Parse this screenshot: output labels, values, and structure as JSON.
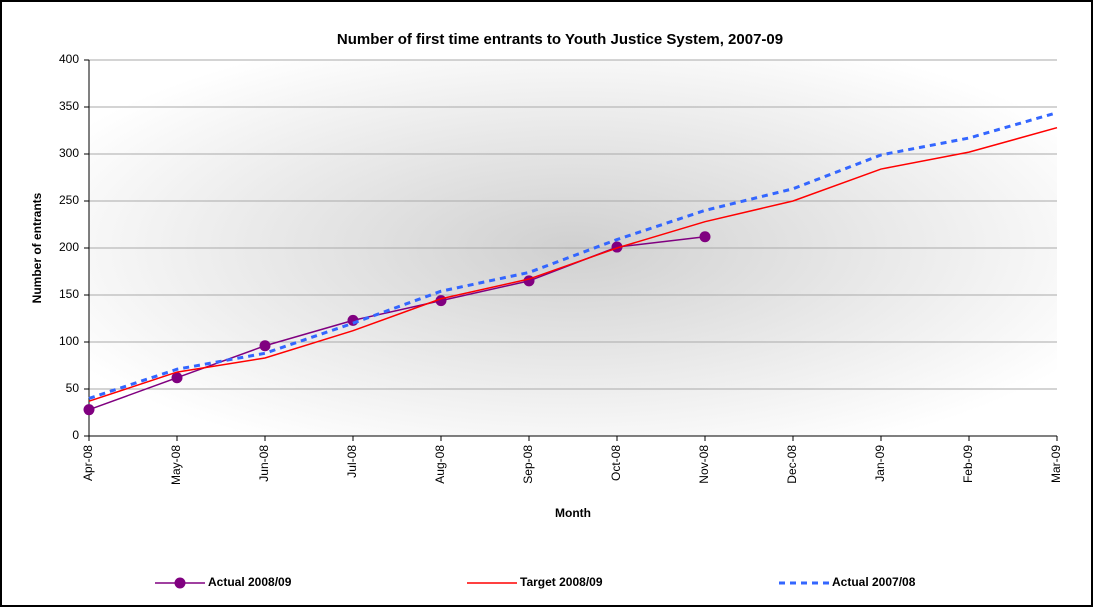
{
  "chart_data": {
    "type": "line",
    "title": "Number of first time entrants to Youth Justice System, 2007-09",
    "x_label": "Month",
    "y_label": "Number of entrants",
    "categories": [
      "Apr-08",
      "May-08",
      "Jun-08",
      "Jul-08",
      "Aug-08",
      "Sep-08",
      "Oct-08",
      "Nov-08",
      "Dec-08",
      "Jan-09",
      "Feb-09",
      "Mar-09"
    ],
    "series": [
      {
        "name": "Actual 2008/09",
        "color": "#800080",
        "marker": "circle",
        "values": [
          28,
          62,
          96,
          123,
          144,
          165,
          201,
          212,
          null,
          null,
          null,
          null
        ]
      },
      {
        "name": "Target 2008/09",
        "color": "#ff0000",
        "values": [
          37,
          68,
          83,
          112,
          146,
          167,
          200,
          228,
          250,
          284,
          302,
          328
        ]
      },
      {
        "name": "Actual 2007/08",
        "color": "#3366ff",
        "style": "dashed",
        "values": [
          40,
          71,
          88,
          120,
          154,
          174,
          209,
          240,
          263,
          299,
          317,
          344
        ]
      }
    ],
    "ylim": [
      0,
      400
    ],
    "yticks": [
      0,
      50,
      100,
      150,
      200,
      250,
      300,
      350,
      400
    ],
    "grid": true,
    "legend": "bottom"
  }
}
